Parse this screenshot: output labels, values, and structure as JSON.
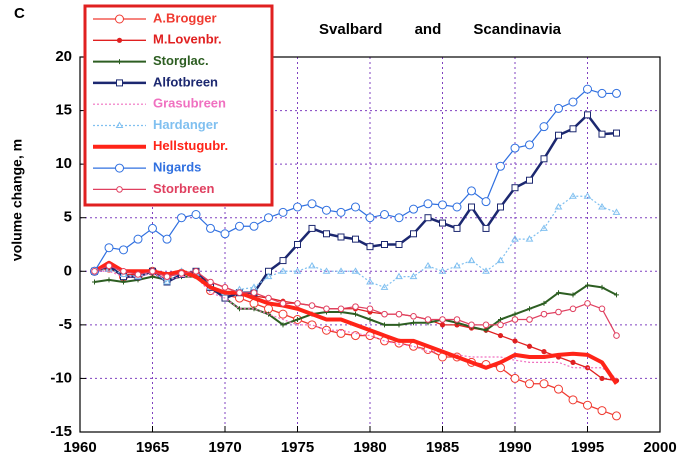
{
  "chart_data": {
    "type": "line",
    "panel_label": "C",
    "title": "Svalbard and Scandinavia",
    "ylabel": "volume change, m",
    "x": [
      1961,
      1962,
      1963,
      1964,
      1965,
      1966,
      1967,
      1968,
      1969,
      1970,
      1971,
      1972,
      1973,
      1974,
      1975,
      1976,
      1977,
      1978,
      1979,
      1980,
      1981,
      1982,
      1983,
      1984,
      1985,
      1986,
      1987,
      1988,
      1989,
      1990,
      1991,
      1992,
      1993,
      1994,
      1995,
      1996,
      1997
    ],
    "xlim": [
      1960,
      2000
    ],
    "xticks": [
      1960,
      1965,
      1970,
      1975,
      1980,
      1985,
      1990,
      1995,
      2000
    ],
    "ylim": [
      -15,
      20
    ],
    "yticks": [
      -15,
      -10,
      -5,
      0,
      5,
      10,
      15,
      20
    ],
    "grid": true,
    "legend": "upper left",
    "series": [
      {
        "name": "A.Brogger",
        "color": "#f03a30",
        "marker": "circle-open",
        "width": 1.3,
        "dashed": false,
        "values": [
          0,
          0.3,
          -0.5,
          -0.5,
          0,
          -0.5,
          -0.2,
          -0.3,
          -1.8,
          -2.2,
          -2.5,
          -3,
          -3.5,
          -4,
          -4.5,
          -5,
          -5.5,
          -5.8,
          -6,
          -6,
          -6.5,
          -6.7,
          -7,
          -7.3,
          -8,
          -8,
          -8.5,
          -8.7,
          -9,
          -10,
          -10.5,
          -10.5,
          -11,
          -12,
          -12.5,
          -13,
          -13.5
        ]
      },
      {
        "name": "M.Lovenbr.",
        "color": "#e02020",
        "marker": "dot",
        "width": 1.3,
        "dashed": false,
        "values": [
          0,
          0.3,
          -0.3,
          -0.3,
          0,
          -0.3,
          0,
          -0.3,
          -1,
          -1.5,
          -2,
          -2.3,
          -2.5,
          -2.8,
          -3,
          -3.2,
          -3.5,
          -3.5,
          -3.5,
          -3.8,
          -4,
          -4,
          -4.2,
          -4.5,
          -5,
          -5,
          -5.3,
          -5.5,
          -6,
          -6.5,
          -7,
          -7.5,
          -8,
          -8.5,
          -9,
          -10,
          -10.2
        ]
      },
      {
        "name": "Storglac.",
        "color": "#2d5e22",
        "marker": "cross",
        "width": 2,
        "dashed": false,
        "values": [
          -1,
          -0.8,
          -1,
          -0.8,
          -0.5,
          -0.8,
          -0.5,
          -0.5,
          -1.5,
          -2.5,
          -3.5,
          -3.5,
          -4,
          -5,
          -4.5,
          -4,
          -3.8,
          -3.8,
          -4,
          -4.5,
          -5,
          -5,
          -4.8,
          -4.8,
          -4.5,
          -4.8,
          -5.2,
          -5.5,
          -4.5,
          -4,
          -3.5,
          -3,
          -2,
          -2.2,
          -1.3,
          -1.5,
          -2.2
        ]
      },
      {
        "name": "Alfotbreen",
        "color": "#1c2870",
        "marker": "square-open",
        "width": 2.5,
        "dashed": false,
        "values": [
          0,
          0.5,
          -0.5,
          -0.5,
          0,
          -1,
          -0.3,
          0,
          -1.5,
          -2.5,
          -2,
          -2,
          0,
          1,
          2.5,
          4,
          3.5,
          3.2,
          3,
          2.3,
          2.5,
          2.5,
          3.5,
          5,
          4.5,
          4,
          6,
          4,
          6,
          7.8,
          8.5,
          10.5,
          12.7,
          13.3,
          14.6,
          12.8,
          12.9
        ]
      },
      {
        "name": "Grasubreen",
        "color": "#f070c0",
        "marker": "none",
        "width": 1.2,
        "dashed": true,
        "values": [
          0,
          0,
          -0.5,
          -0.5,
          -0.2,
          -0.8,
          -0.5,
          -0.5,
          -2,
          -2.5,
          -3.5,
          -3.5,
          -4,
          -4.5,
          -5,
          -5,
          -5.5,
          -5.5,
          -5.8,
          -6,
          -6.5,
          -6.8,
          -7,
          -7.5,
          -7.5,
          -7.8,
          -8,
          -8,
          -8,
          -8.3,
          -8.5,
          -8.5,
          -8.5,
          -9,
          -9,
          -9,
          -10
        ]
      },
      {
        "name": "Hardanger",
        "color": "#80c0f0",
        "marker": "triangle",
        "width": 1.2,
        "dashed": true,
        "values": [
          0,
          0.2,
          -0.3,
          -0.5,
          0,
          -1,
          0,
          -0.2,
          -1.5,
          -2,
          -1.7,
          -1.5,
          -0.5,
          0,
          0,
          0.5,
          0,
          0,
          0,
          -1,
          -1.5,
          -0.5,
          -0.5,
          0.5,
          0,
          0.5,
          1,
          0,
          1,
          3,
          3,
          4,
          6,
          7,
          7,
          6,
          5.5
        ]
      },
      {
        "name": "Hellstugubr.",
        "color": "#ff2418",
        "marker": "none",
        "width": 4,
        "dashed": false,
        "values": [
          0,
          0.8,
          0,
          0,
          0,
          -0.3,
          0,
          -0.5,
          -1.5,
          -2,
          -2,
          -2.5,
          -3,
          -3.2,
          -3.5,
          -4,
          -4.5,
          -4.5,
          -5,
          -5.5,
          -6,
          -6.5,
          -6.5,
          -7,
          -7.5,
          -8,
          -8.5,
          -9,
          -8.5,
          -7.8,
          -8,
          -8,
          -7.8,
          -7.7,
          -7.8,
          -8.5,
          -10.5
        ]
      },
      {
        "name": "Nigards",
        "color": "#3070e0",
        "marker": "circle-open",
        "width": 1.2,
        "dashed": false,
        "values": [
          0,
          2.2,
          2,
          3,
          4,
          3,
          5,
          5.3,
          4,
          3.5,
          4.2,
          4.2,
          5,
          5.5,
          6,
          6.3,
          5.7,
          5.5,
          6,
          5,
          5.3,
          5,
          5.8,
          6.3,
          6.2,
          6,
          7.5,
          6.5,
          9.8,
          11.5,
          11.8,
          13.5,
          15.2,
          15.8,
          17,
          16.6,
          16.6
        ]
      },
      {
        "name": "Storbreen",
        "color": "#e04060",
        "marker": "small-circle",
        "width": 1.2,
        "dashed": false,
        "values": [
          0,
          0.5,
          0,
          -0.3,
          0,
          -0.5,
          -0.2,
          0,
          -1,
          -1.5,
          -2,
          -2,
          -2.5,
          -3,
          -3,
          -3.2,
          -3.5,
          -3.5,
          -3.3,
          -3.5,
          -4,
          -4,
          -4.2,
          -4.5,
          -4.5,
          -4.5,
          -5,
          -5,
          -5,
          -4.5,
          -4.5,
          -4,
          -3.8,
          -3.5,
          -3,
          -3.5,
          -6
        ]
      }
    ]
  }
}
